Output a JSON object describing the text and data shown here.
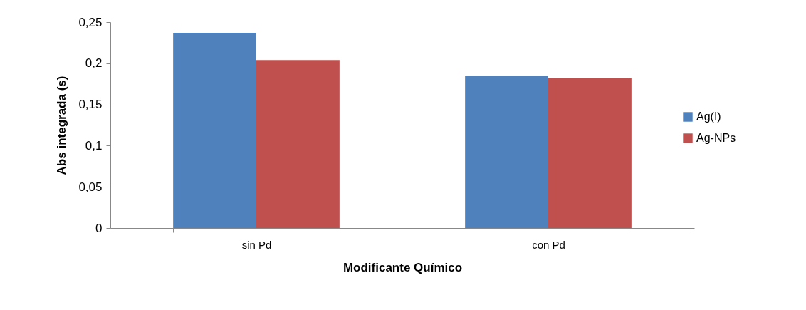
{
  "chart_data": {
    "type": "bar",
    "xlabel": "Modificante Químico",
    "ylabel": "Abs integrada (s)",
    "categories": [
      "sin Pd",
      "con Pd"
    ],
    "series": [
      {
        "name": "Ag(I)",
        "color": "#4f81bd",
        "values": [
          0.237,
          0.185
        ]
      },
      {
        "name": "Ag-NPs",
        "color": "#c0504d",
        "values": [
          0.204,
          0.182
        ]
      }
    ],
    "ylim": [
      0,
      0.25
    ],
    "yticks": [
      0,
      {
        "value": 0.05,
        "label": "0,05"
      },
      {
        "value": 0.1,
        "label": "0,1"
      },
      {
        "value": 0.15,
        "label": "0,15"
      },
      {
        "value": 0.2,
        "label": "0,2"
      },
      {
        "value": 0.25,
        "label": "0,25"
      }
    ],
    "grid": false,
    "legend": "right"
  }
}
